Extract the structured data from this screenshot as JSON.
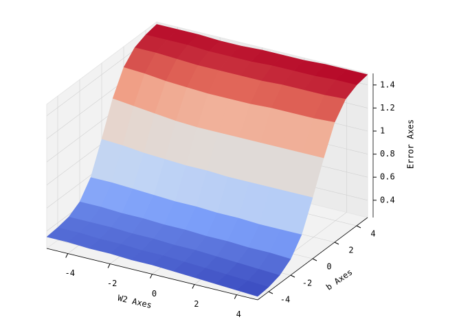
{
  "chart_data": {
    "type": "surface",
    "colormap": "coolwarm",
    "xlabel": "W2 Axes",
    "ylabel": "b Axes",
    "zlabel": "Error Axes",
    "x": [
      -5,
      -4,
      -3,
      -2,
      -1,
      0,
      1,
      2,
      3,
      4,
      5
    ],
    "y": [
      -5,
      -4,
      -3,
      -2,
      -1,
      0,
      1,
      2,
      3,
      4,
      5
    ],
    "z": [
      [
        0.35,
        0.35,
        0.34,
        0.34,
        0.33,
        0.33,
        0.32,
        0.31,
        0.3,
        0.29,
        0.28
      ],
      [
        0.36,
        0.36,
        0.35,
        0.35,
        0.34,
        0.34,
        0.33,
        0.32,
        0.31,
        0.3,
        0.29
      ],
      [
        0.38,
        0.38,
        0.38,
        0.37,
        0.37,
        0.36,
        0.36,
        0.35,
        0.34,
        0.33,
        0.32
      ],
      [
        0.44,
        0.44,
        0.43,
        0.43,
        0.42,
        0.42,
        0.41,
        0.41,
        0.4,
        0.4,
        0.39
      ],
      [
        0.58,
        0.58,
        0.57,
        0.56,
        0.55,
        0.55,
        0.54,
        0.54,
        0.53,
        0.53,
        0.53
      ],
      [
        0.84,
        0.83,
        0.81,
        0.8,
        0.79,
        0.79,
        0.78,
        0.78,
        0.78,
        0.78,
        0.78
      ],
      [
        1.12,
        1.1,
        1.08,
        1.06,
        1.05,
        1.05,
        1.05,
        1.05,
        1.05,
        1.05,
        1.05
      ],
      [
        1.32,
        1.31,
        1.29,
        1.28,
        1.27,
        1.27,
        1.27,
        1.28,
        1.28,
        1.28,
        1.29
      ],
      [
        1.42,
        1.42,
        1.41,
        1.4,
        1.4,
        1.4,
        1.4,
        1.41,
        1.41,
        1.41,
        1.42
      ],
      [
        1.46,
        1.46,
        1.46,
        1.45,
        1.45,
        1.45,
        1.46,
        1.46,
        1.46,
        1.47,
        1.47
      ],
      [
        1.48,
        1.48,
        1.48,
        1.47,
        1.47,
        1.48,
        1.48,
        1.48,
        1.49,
        1.49,
        1.49
      ]
    ],
    "xlim": [
      -5,
      5
    ],
    "ylim": [
      -5,
      5
    ],
    "zlim": [
      0.25,
      1.5
    ],
    "xticks": [
      -4,
      -2,
      0,
      2,
      4
    ],
    "yticks": [
      -4,
      -2,
      0,
      2,
      4
    ],
    "zticks": [
      0.4,
      0.6,
      0.8,
      1.0,
      1.2,
      1.4
    ],
    "grid": true
  }
}
